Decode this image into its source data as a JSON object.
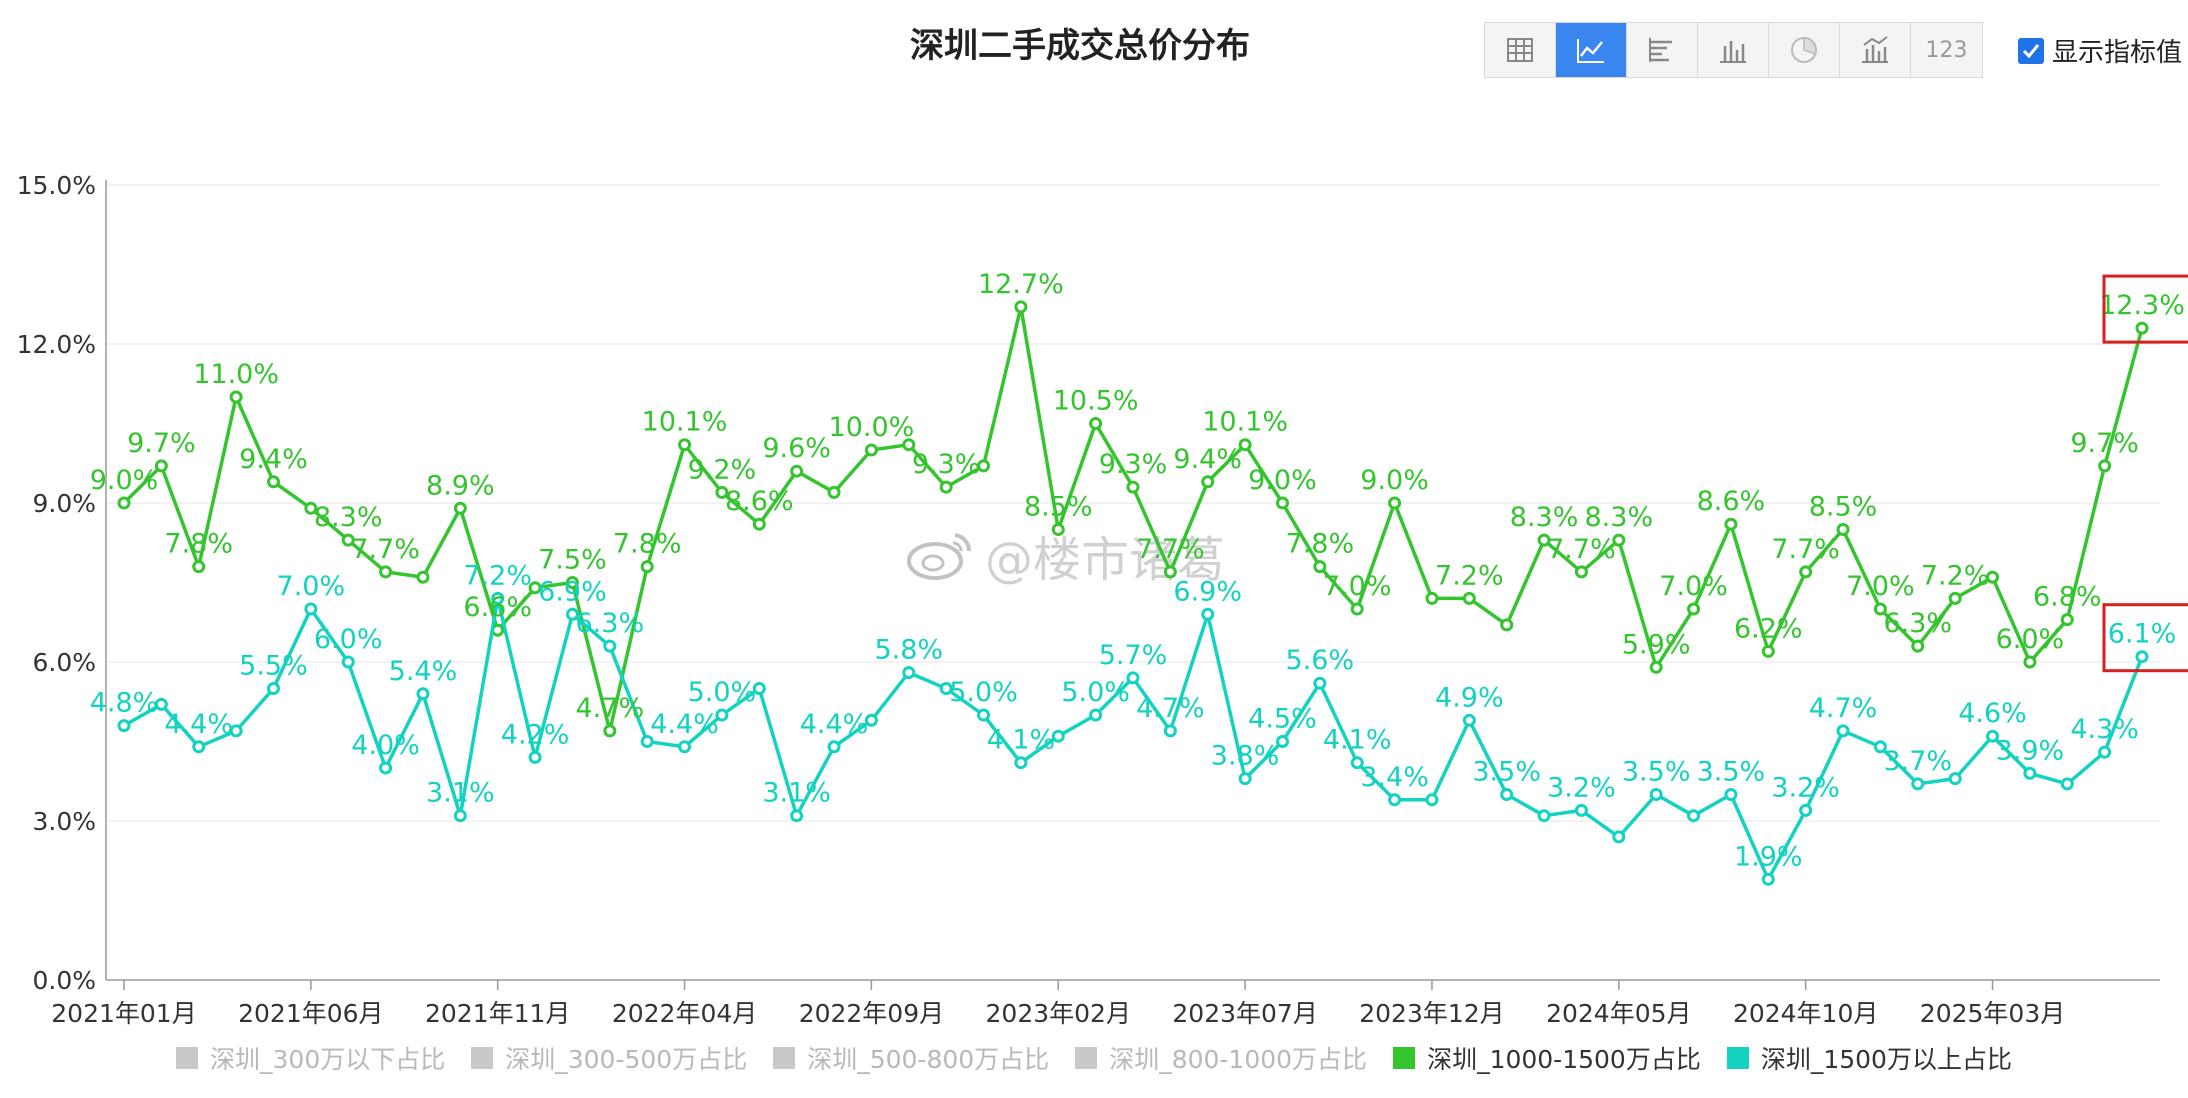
{
  "title": "深圳二手成交总价分布",
  "toolbar": {
    "buttons": [
      {
        "icon": "table-icon"
      },
      {
        "icon": "line-chart-icon",
        "active": true
      },
      {
        "icon": "horizontal-bar-icon"
      },
      {
        "icon": "bar-chart-icon"
      },
      {
        "icon": "pie-chart-icon"
      },
      {
        "icon": "combo-chart-icon"
      },
      {
        "icon": "number-icon",
        "text": "123"
      }
    ],
    "show_values_label": "显示指标值"
  },
  "watermark_text": "@楼市诸葛",
  "colors": {
    "green": "#33c42e",
    "cyan": "#12d2c0",
    "disabled": "#c8c8c8",
    "highlight_box": "#d62020",
    "accent": "#3a86f0"
  },
  "chart_data": {
    "type": "line",
    "x": [
      "2021年01月",
      "2021年02月",
      "2021年03月",
      "2021年04月",
      "2021年05月",
      "2021年06月",
      "2021年07月",
      "2021年08月",
      "2021年09月",
      "2021年10月",
      "2021年11月",
      "2021年12月",
      "2022年01月",
      "2022年02月",
      "2022年03月",
      "2022年04月",
      "2022年05月",
      "2022年06月",
      "2022年07月",
      "2022年08月",
      "2022年09月",
      "2022年10月",
      "2022年11月",
      "2022年12月",
      "2023年01月",
      "2023年02月",
      "2023年03月",
      "2023年04月",
      "2023年05月",
      "2023年06月",
      "2023年07月",
      "2023年08月",
      "2023年09月",
      "2023年10月",
      "2023年11月",
      "2023年12月",
      "2024年01月",
      "2024年02月",
      "2024年03月",
      "2024年04月",
      "2024年05月",
      "2024年06月",
      "2024年07月",
      "2024年08月",
      "2024年09月",
      "2024年10月",
      "2024年11月",
      "2024年12月",
      "2025年01月",
      "2025年02月",
      "2025年03月",
      "2025年04月",
      "2025年05月",
      "2025年06月",
      "2025年07月"
    ],
    "x_tick_labels": [
      "2021年01月",
      "2021年06月",
      "2021年11月",
      "2022年04月",
      "2022年09月",
      "2023年02月",
      "2023年07月",
      "2023年12月",
      "2024年05月",
      "2024年10月",
      "2025年03月"
    ],
    "y_tick_labels": [
      "0.0%",
      "3.0%",
      "6.0%",
      "9.0%",
      "12.0%",
      "15.0%"
    ],
    "ylim": [
      0,
      15
    ],
    "grid": true,
    "legend_position": "bottom",
    "legend": [
      {
        "name": "深圳_300万以下占比",
        "active": false
      },
      {
        "name": "深圳_300-500万占比",
        "active": false
      },
      {
        "name": "深圳_500-800万占比",
        "active": false
      },
      {
        "name": "深圳_800-1000万占比",
        "active": false
      },
      {
        "name": "深圳_1000-1500万占比",
        "active": true
      },
      {
        "name": "深圳_1500万以上占比",
        "active": true
      }
    ],
    "series": [
      {
        "name": "深圳_1000-1500万占比",
        "color": "#33c42e",
        "values": [
          9.0,
          9.7,
          7.8,
          11.0,
          9.4,
          8.9,
          8.3,
          7.7,
          7.6,
          8.9,
          6.6,
          7.4,
          7.5,
          4.7,
          7.8,
          10.1,
          9.2,
          8.6,
          9.6,
          9.2,
          10.0,
          10.1,
          9.3,
          9.7,
          12.7,
          8.5,
          10.5,
          9.3,
          7.7,
          9.4,
          10.1,
          9.0,
          7.8,
          7.0,
          9.0,
          7.2,
          7.2,
          6.7,
          8.3,
          7.7,
          8.3,
          5.9,
          7.0,
          8.6,
          6.2,
          7.7,
          8.5,
          7.0,
          6.3,
          7.2,
          7.6,
          6.0,
          6.8,
          9.7,
          12.3
        ],
        "labels": [
          "9.0%",
          "9.7%",
          "7.8%",
          "11.0%",
          "9.4%",
          "",
          "8.3%",
          "7.7%",
          "",
          "8.9%",
          "6.6%",
          "",
          "7.5%",
          "4.7%",
          "7.8%",
          "10.1%",
          "9.2%",
          "8.6%",
          "9.6%",
          "",
          "10.0%",
          "",
          "9.3%",
          "",
          "12.7%",
          "8.5%",
          "10.5%",
          "9.3%",
          "7.7%",
          "9.4%",
          "10.1%",
          "9.0%",
          "7.8%",
          "7.0%",
          "9.0%",
          "",
          "7.2%",
          "",
          "8.3%",
          "7.7%",
          "8.3%",
          "5.9%",
          "7.0%",
          "8.6%",
          "6.2%",
          "7.7%",
          "8.5%",
          "7.0%",
          "6.3%",
          "7.2%",
          "",
          "6.0%",
          "6.8%",
          "9.7%",
          "12.3%"
        ]
      },
      {
        "name": "深圳_1500万以上占比",
        "color": "#12d2c0",
        "values": [
          4.8,
          5.2,
          4.4,
          4.7,
          5.5,
          7.0,
          6.0,
          4.0,
          5.4,
          3.1,
          7.2,
          4.2,
          6.9,
          6.3,
          4.5,
          4.4,
          5.0,
          5.5,
          3.1,
          4.4,
          4.9,
          5.8,
          5.5,
          5.0,
          4.1,
          4.6,
          5.0,
          5.7,
          4.7,
          6.9,
          3.8,
          4.5,
          5.6,
          4.1,
          3.4,
          3.4,
          4.9,
          3.5,
          3.1,
          3.2,
          2.7,
          3.5,
          3.1,
          3.5,
          1.9,
          3.2,
          4.7,
          4.4,
          3.7,
          3.8,
          4.6,
          3.9,
          3.7,
          4.3,
          6.1
        ],
        "labels": [
          "4.8%",
          "",
          "4.4%",
          "",
          "5.5%",
          "7.0%",
          "6.0%",
          "4.0%",
          "5.4%",
          "3.1%",
          "7.2%",
          "4.2%",
          "6.9%",
          "6.3%",
          "",
          "4.4%",
          "5.0%",
          "",
          "3.1%",
          "4.4%",
          "",
          "5.8%",
          "",
          "5.0%",
          "4.1%",
          "",
          "5.0%",
          "5.7%",
          "4.7%",
          "6.9%",
          "3.8%",
          "4.5%",
          "5.6%",
          "4.1%",
          "3.4%",
          "",
          "4.9%",
          "3.5%",
          "",
          "3.2%",
          "",
          "3.5%",
          "",
          "3.5%",
          "1.9%",
          "3.2%",
          "4.7%",
          "",
          "3.7%",
          "",
          "4.6%",
          "3.9%",
          "",
          "4.3%",
          "6.1%"
        ]
      }
    ]
  }
}
